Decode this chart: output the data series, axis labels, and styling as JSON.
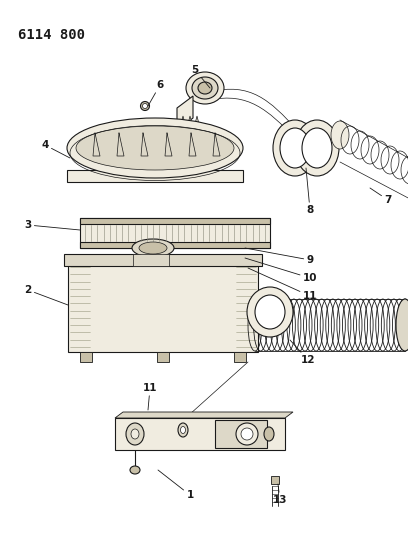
{
  "title": "6114 800",
  "bg_color": "#ffffff",
  "lc": "#1a1a1a",
  "fc_light": "#f0ece0",
  "fc_mid": "#ddd8c8",
  "fc_dark": "#c8c0a8",
  "fc_shadow": "#b0a890",
  "figsize": [
    4.08,
    5.33
  ],
  "dpi": 100
}
